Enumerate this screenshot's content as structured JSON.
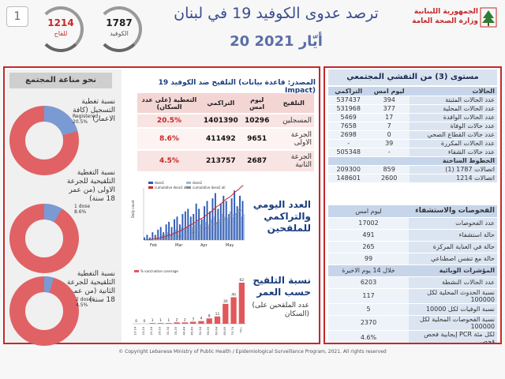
{
  "page_number": "1",
  "header": {
    "title": "ترصد عدوى الكوفيد 19 في لبنان",
    "date": "20 أيّار 2021",
    "counter_1787": {
      "value": "1787",
      "label": "الكوفيد"
    },
    "counter_1214": {
      "value": "1214",
      "label": "للقاح"
    },
    "logo_line1": "الجمهورية اللبنانية",
    "logo_line2": "وزارة الصحة العامة",
    "colors": {
      "title": "#3a4d8f",
      "accent": "#c62828"
    }
  },
  "community": {
    "heading": "نحو مناعة المجتمع",
    "donuts": [
      {
        "label": "نسبة تغطية التسجيل (كافة الاعمار)",
        "tag": "Registered",
        "tag_pct": "20.5%",
        "fraction": 0.205
      },
      {
        "label": "نسبة التغطية التلقيحية للجرعة الاولى (من عمر 18 سنة)",
        "tag": "1 dose",
        "tag_pct": "8.6%",
        "fraction": 0.086
      },
      {
        "label": "نسبة التغطية التلقيحية للجرعة الثانية (من عمر 18 سنة)",
        "tag": "2 doses",
        "tag_pct": "4.5%",
        "fraction": 0.045
      }
    ]
  },
  "vaccination": {
    "title": "التلقيح ضد الكوفيد 19 (المصدر: قاعدة بيانات Impact)",
    "columns": [
      "التغطية (على عدد السكان)",
      "التراكمي",
      "ليوم امس",
      "التلقيح"
    ],
    "rows": [
      {
        "name": "المسجلين",
        "today": "10296",
        "cumulative": "1401390",
        "coverage": "20.5%"
      },
      {
        "name": "الجرعة الاولى",
        "today": "9651",
        "cumulative": "411492",
        "coverage": "8.6%"
      },
      {
        "name": "الجرعة الثانية",
        "today": "2687",
        "cumulative": "213757",
        "coverage": "4.5%"
      }
    ],
    "daily_label": "العدد اليومي والتراكمي للملقحين",
    "age_label": "نسبة التلقيح حسب العمر",
    "age_sublabel": "(عدد الملقحين على السكان)"
  },
  "chart_data": [
    {
      "type": "bar",
      "title": "",
      "series": [
        {
          "name": "dose1",
          "color": "#2e59b3"
        },
        {
          "name": "dose2",
          "color": "#9fb6dc"
        },
        {
          "name": "cumulative dose1 all",
          "color": "#c62828"
        },
        {
          "name": "cumulative dose2 all",
          "color": "#888888"
        }
      ],
      "x_tick_labels": [
        "Feb",
        "Mar",
        "Apr",
        "May"
      ],
      "daily_dose1": [
        1,
        2,
        1,
        3,
        2,
        4,
        5,
        3,
        6,
        7,
        5,
        8,
        9,
        6,
        10,
        11,
        12,
        9,
        10,
        14,
        12,
        8,
        13,
        15,
        11,
        16,
        18,
        12,
        14,
        17,
        15,
        10,
        16,
        19,
        13,
        17,
        15
      ],
      "daily_dose2": [
        0,
        0,
        0,
        0,
        1,
        1,
        2,
        2,
        3,
        2,
        3,
        4,
        3,
        5,
        4,
        5,
        6,
        5,
        6,
        7,
        6,
        8,
        7,
        6,
        8,
        9,
        7,
        8,
        10,
        9,
        8,
        11,
        9,
        10,
        12,
        9,
        10
      ],
      "ylabel": "Daily count"
    },
    {
      "type": "bar",
      "title": "",
      "series_name": "% vaccination coverage",
      "categories": [
        "10-14",
        "15-19",
        "20-24",
        "25-29",
        "30-34",
        "35-39",
        "40-44",
        "45-49",
        "50-54",
        "55-59",
        "60-64",
        "65-69",
        "70-74",
        "75+"
      ],
      "values": [
        0,
        0,
        1,
        1,
        1,
        2,
        2,
        3,
        4,
        8,
        11,
        30,
        40,
        62
      ],
      "color": "#e0585b"
    }
  ],
  "epi": {
    "heading": "مستوى (3) من التفشي المجتمعي",
    "header_row": {
      "key": "الحالات",
      "yesterday": "ليوم امس",
      "cumulative": "التراكمي"
    },
    "rows": [
      {
        "key": "عدد الحالات المثبتة",
        "yesterday": "394",
        "cumulative": "537437"
      },
      {
        "key": "عدد الحالات المحلية",
        "yesterday": "377",
        "cumulative": "531968"
      },
      {
        "key": "عدد الحالات الوافدة",
        "yesterday": "17",
        "cumulative": "5469"
      },
      {
        "key": "عدد حالات الوفاة",
        "yesterday": "7",
        "cumulative": "7658"
      },
      {
        "key": "عدد حالات القطاع الصحي",
        "yesterday": "0",
        "cumulative": "2698"
      },
      {
        "key": "عدد الحالات المكررة",
        "yesterday": "39",
        "cumulative": "-"
      },
      {
        "key": "عدد حالات الشفاء",
        "yesterday": "-",
        "cumulative": "505348"
      }
    ],
    "hotline_heading": "الخطوط الساخنة",
    "hotlines": [
      {
        "key": "اتصالات 1787 (1)",
        "yesterday": "859",
        "cumulative": "209300"
      },
      {
        "key": "اتصالات 1214",
        "yesterday": "2600",
        "cumulative": "148601"
      }
    ],
    "lab_heading": "الفحوصات والاستشفاء",
    "lab_col": "ليوم امس",
    "lab_rows": [
      {
        "key": "عدد الفحوصات",
        "value": "17002"
      },
      {
        "key": "حالة استشفاء",
        "value": "491"
      },
      {
        "key": "حالة في العناية المركزة",
        "value": "265"
      },
      {
        "key": "حالة مع تنفس اصطناعي",
        "value": "99"
      }
    ],
    "indicators_heading": "المؤشرات الوبائية",
    "indicators_col": "خلال 14 يوم الاخيرة",
    "indicators": [
      {
        "key": "عدد الحالات النشطة",
        "value": "6203"
      },
      {
        "key": "نسبة الحدوث المحلية لكل 100000",
        "value": "117"
      },
      {
        "key": "نسبة الوفيات لكل 10000",
        "value": "5"
      },
      {
        "key": "نسبة الفحوصات المحلية لكل 100000",
        "value": "2370"
      },
      {
        "key": "إيجابية فحص PCR لكل مئة فحص",
        "value": "4.6%"
      }
    ]
  },
  "footer": "© Copyright Lebanese Ministry of Public Health / Epidemiological Surveillance Program, 2021. All rights reserved"
}
